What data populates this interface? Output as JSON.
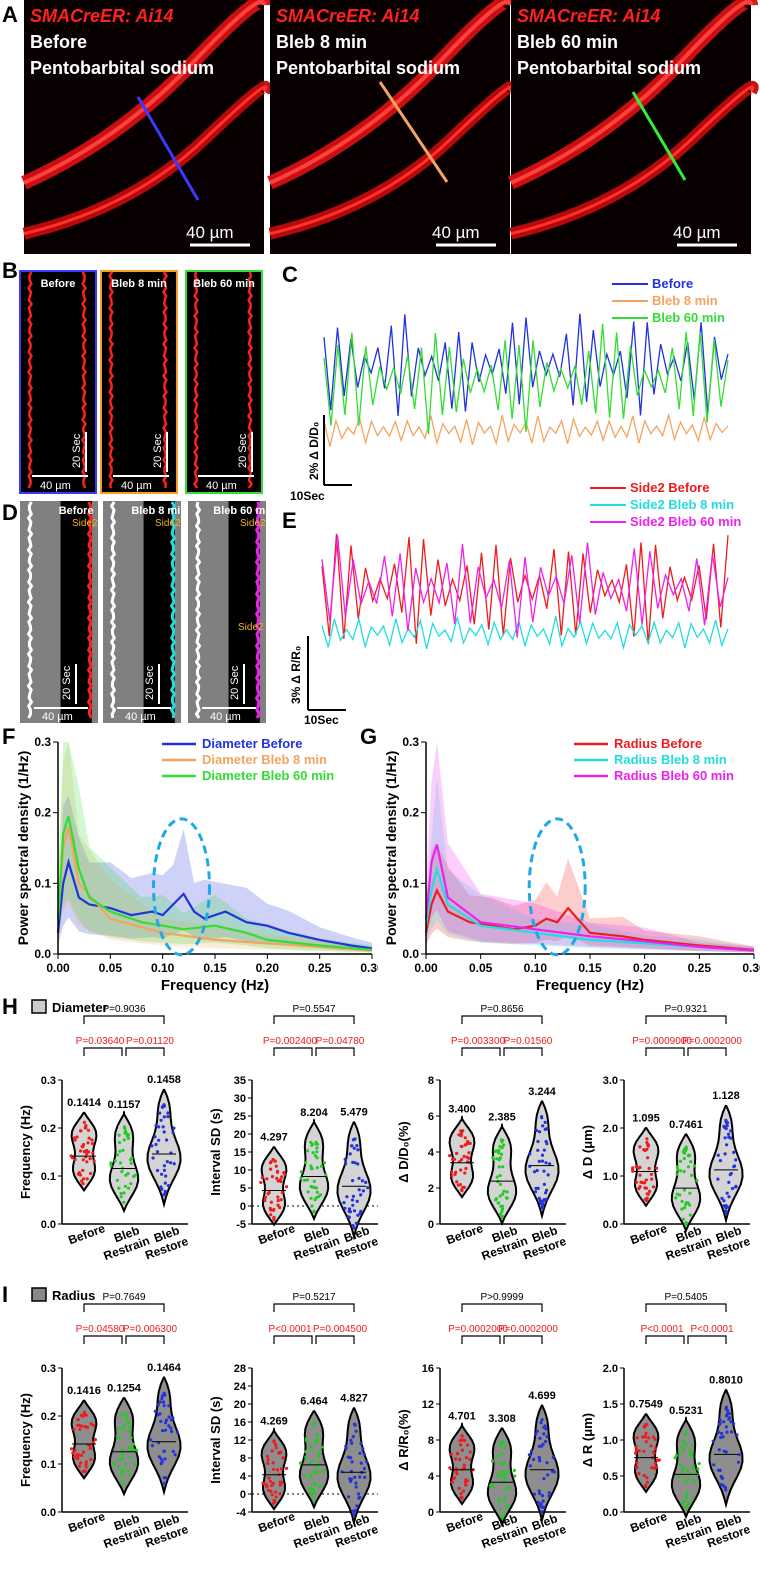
{
  "panel_letters": {
    "A": "A",
    "B": "B",
    "C": "C",
    "D": "D",
    "E": "E",
    "F": "F",
    "G": "G",
    "H": "H",
    "I": "I"
  },
  "panelA": {
    "images": [
      {
        "title": "SMACreER: Ai14",
        "line1": "Before",
        "line2": "Pentobarbital sodium",
        "scale": "40 µm",
        "line_color": "#3a3aff"
      },
      {
        "title": "SMACreER: Ai14",
        "line1": "Bleb 8 min",
        "line2": "Pentobarbital sodium",
        "scale": "40 µm",
        "line_color": "#f4a460"
      },
      {
        "title": "SMACreER: Ai14",
        "line1": "Bleb 60 min",
        "line2": "Pentobarbital sodium",
        "scale": "40 µm",
        "line_color": "#33ee33"
      }
    ]
  },
  "panelB": {
    "items": [
      {
        "label": "Before",
        "color": "#3a3aff",
        "time": "20 Sec",
        "scale": "40 µm"
      },
      {
        "label": "Bleb 8 min",
        "color": "#f4a020",
        "time": "20 Sec",
        "scale": "40 µm"
      },
      {
        "label": "Bleb 60 min",
        "color": "#33dd33",
        "time": "20 Sec",
        "scale": "40 µm"
      }
    ]
  },
  "panelC": {
    "legend": [
      {
        "name": "Before",
        "color": "#2233dd"
      },
      {
        "name": "Bleb 8 min",
        "color": "#f4a460"
      },
      {
        "name": "Bleb 60 min",
        "color": "#33dd33"
      }
    ],
    "ylabel": "2% Δ D/D₀",
    "xlabel": "10Sec"
  },
  "panelD": {
    "items": [
      {
        "label": "Before",
        "side": "Side2",
        "color": "#ff2020",
        "time": "20 Sec",
        "scale": "40 µm"
      },
      {
        "label": "Bleb 8 min",
        "side": "Side2",
        "color": "#22dddd",
        "time": "20 Sec",
        "scale": "40 µm"
      },
      {
        "label": "Bleb 60 min",
        "side": "Side2",
        "side_extra": "Side2",
        "color": "#ee22ee",
        "time": "20 Sec",
        "scale": "40 µm"
      }
    ]
  },
  "panelE": {
    "legend": [
      {
        "name": "Side2 Before",
        "color": "#ee1c1c"
      },
      {
        "name": "Side2 Bleb 8 min",
        "color": "#22dddd"
      },
      {
        "name": "Side2 Bleb 60 min",
        "color": "#ee22ee"
      }
    ],
    "ylabel": "3% Δ R/R₀",
    "xlabel": "10Sec"
  },
  "chart_data": [
    {
      "id": "F",
      "type": "line",
      "title": "",
      "xlabel": "Frequency (Hz)",
      "ylabel": "Power spectral density (1/Hz)",
      "xlim": [
        0,
        0.3
      ],
      "ylim": [
        0,
        0.3
      ],
      "xticks": [
        "0.00",
        "0.05",
        "0.10",
        "0.15",
        "0.20",
        "0.25",
        "0.30"
      ],
      "yticks": [
        "0.0",
        "0.1",
        "0.2",
        "0.3"
      ],
      "legend_position": "top-right",
      "series": [
        {
          "name": "Diameter Before",
          "color": "#2233dd",
          "x": [
            0,
            0.005,
            0.01,
            0.02,
            0.03,
            0.05,
            0.07,
            0.09,
            0.1,
            0.11,
            0.12,
            0.13,
            0.14,
            0.16,
            0.18,
            0.2,
            0.22,
            0.25,
            0.28,
            0.3
          ],
          "y": [
            0.03,
            0.1,
            0.13,
            0.08,
            0.07,
            0.065,
            0.055,
            0.06,
            0.055,
            0.07,
            0.085,
            0.06,
            0.05,
            0.06,
            0.045,
            0.04,
            0.03,
            0.02,
            0.012,
            0.008
          ]
        },
        {
          "name": "Diameter Bleb 8 min",
          "color": "#f4a460",
          "x": [
            0,
            0.005,
            0.01,
            0.02,
            0.05,
            0.1,
            0.15,
            0.2,
            0.25,
            0.3
          ],
          "y": [
            0.05,
            0.15,
            0.18,
            0.1,
            0.05,
            0.03,
            0.02,
            0.015,
            0.01,
            0.005
          ]
        },
        {
          "name": "Diameter Bleb 60 min",
          "color": "#33dd33",
          "x": [
            0,
            0.005,
            0.01,
            0.02,
            0.03,
            0.05,
            0.08,
            0.1,
            0.12,
            0.15,
            0.18,
            0.2,
            0.25,
            0.3
          ],
          "y": [
            0.05,
            0.17,
            0.195,
            0.12,
            0.08,
            0.06,
            0.045,
            0.04,
            0.035,
            0.04,
            0.03,
            0.02,
            0.012,
            0.006
          ]
        }
      ]
    },
    {
      "id": "G",
      "type": "line",
      "title": "",
      "xlabel": "Frequency (Hz)",
      "ylabel": "Power spectral density (1/Hz)",
      "xlim": [
        0,
        0.3
      ],
      "ylim": [
        0,
        0.3
      ],
      "xticks": [
        "0.00",
        "0.05",
        "0.10",
        "0.15",
        "0.20",
        "0.25",
        "0.30"
      ],
      "yticks": [
        "0.0",
        "0.1",
        "0.2",
        "0.3"
      ],
      "legend_position": "top-right",
      "series": [
        {
          "name": "Radius Before",
          "color": "#ee1c1c",
          "x": [
            0,
            0.005,
            0.01,
            0.02,
            0.04,
            0.06,
            0.08,
            0.1,
            0.11,
            0.12,
            0.13,
            0.15,
            0.18,
            0.2,
            0.25,
            0.3
          ],
          "y": [
            0.03,
            0.07,
            0.09,
            0.06,
            0.045,
            0.04,
            0.035,
            0.04,
            0.05,
            0.045,
            0.065,
            0.03,
            0.025,
            0.02,
            0.012,
            0.006
          ]
        },
        {
          "name": "Radius Bleb 8 min",
          "color": "#22dddd",
          "x": [
            0,
            0.005,
            0.01,
            0.02,
            0.05,
            0.1,
            0.15,
            0.2,
            0.25,
            0.3
          ],
          "y": [
            0.04,
            0.09,
            0.12,
            0.07,
            0.04,
            0.03,
            0.02,
            0.015,
            0.01,
            0.005
          ]
        },
        {
          "name": "Radius Bleb 60 min",
          "color": "#ee22ee",
          "x": [
            0,
            0.005,
            0.01,
            0.02,
            0.05,
            0.1,
            0.15,
            0.2,
            0.25,
            0.3
          ],
          "y": [
            0.05,
            0.13,
            0.155,
            0.08,
            0.045,
            0.035,
            0.025,
            0.018,
            0.01,
            0.005
          ]
        }
      ]
    }
  ],
  "panelH": {
    "legend": "Diameter",
    "legend_color": "#cccccc",
    "categories": [
      "Before",
      "Bleb Restrain",
      "Bleb Restore"
    ],
    "plots": [
      {
        "ylabel": "Frequency (Hz)",
        "yticks": [
          "0.0",
          "0.1",
          "0.2",
          "0.3"
        ],
        "ymin": 0,
        "ymax": 0.3,
        "top_p": "P=0.9036",
        "p1": "P=0.03640",
        "p2": "P=0.01120",
        "p_red": [
          true,
          true
        ],
        "means": [
          "0.1414",
          "0.1157",
          "0.1458"
        ],
        "mean_vals": [
          0.1414,
          0.1157,
          0.1458
        ]
      },
      {
        "ylabel": "Interval SD (s)",
        "yticks": [
          "-5",
          "0",
          "5",
          "10",
          "15",
          "20",
          "25",
          "30",
          "35"
        ],
        "ymin": -5,
        "ymax": 35,
        "top_p": "P=0.5547",
        "p1": "P=0.002400",
        "p2": "P=0.04780",
        "p_red": [
          true,
          true
        ],
        "means": [
          "4.297",
          "8.204",
          "5.479"
        ],
        "mean_vals": [
          4.297,
          8.204,
          5.479
        ]
      },
      {
        "ylabel": "Δ D/D₀(%)",
        "yticks": [
          "0",
          "2",
          "4",
          "6",
          "8"
        ],
        "ymin": 0,
        "ymax": 8,
        "top_p": "P=0.8656",
        "p1": "P=0.003300",
        "p2": "P=0.01560",
        "p_red": [
          true,
          true
        ],
        "means": [
          "3.400",
          "2.385",
          "3.244"
        ],
        "mean_vals": [
          3.4,
          2.385,
          3.244
        ]
      },
      {
        "ylabel": "Δ D (μm)",
        "yticks": [
          "0.0",
          "1.0",
          "2.0",
          "3.0"
        ],
        "ymin": 0,
        "ymax": 3,
        "top_p": "P=0.9321",
        "p1": "P=0.0009000",
        "p2": "P=0.0002000",
        "p_red": [
          true,
          true
        ],
        "means": [
          "1.095",
          "0.7461",
          "1.128"
        ],
        "mean_vals": [
          1.095,
          0.7461,
          1.128
        ]
      }
    ]
  },
  "panelI": {
    "legend": "Radius",
    "legend_color": "#888888",
    "categories": [
      "Before",
      "Bleb Restrain",
      "Bleb Restore"
    ],
    "plots": [
      {
        "ylabel": "Frequency (Hz)",
        "yticks": [
          "0.0",
          "0.1",
          "0.2",
          "0.3"
        ],
        "ymin": 0,
        "ymax": 0.3,
        "top_p": "P=0.7649",
        "p1": "P=0.04580",
        "p2": "P=0.006300",
        "p_red": [
          true,
          true
        ],
        "means": [
          "0.1416",
          "0.1254",
          "0.1464"
        ],
        "mean_vals": [
          0.1416,
          0.1254,
          0.1464
        ]
      },
      {
        "ylabel": "Interval SD (s)",
        "yticks": [
          "-4",
          "0",
          "4",
          "8",
          "12",
          "16",
          "20",
          "24",
          "28"
        ],
        "ymin": -4,
        "ymax": 28,
        "top_p": "P=0.5217",
        "p1": "P<0.0001",
        "p2": "P=0.004500",
        "p_red": [
          true,
          true
        ],
        "means": [
          "4.269",
          "6.464",
          "4.827"
        ],
        "mean_vals": [
          4.269,
          6.464,
          4.827
        ]
      },
      {
        "ylabel": "Δ R/R₀(%)",
        "yticks": [
          "0",
          "4",
          "8",
          "12",
          "16"
        ],
        "ymin": 0,
        "ymax": 16,
        "top_p": "P>0.9999",
        "p1": "P=0.0002000",
        "p2": "P=0.0002000",
        "p_red": [
          true,
          true
        ],
        "means": [
          "4.701",
          "3.308",
          "4.699"
        ],
        "mean_vals": [
          4.701,
          3.308,
          4.699
        ]
      },
      {
        "ylabel": "Δ R (μm)",
        "yticks": [
          "0.0",
          "0.5",
          "1.0",
          "1.5",
          "2.0"
        ],
        "ymin": 0,
        "ymax": 2,
        "top_p": "P=0.5405",
        "p1": "P<0.0001",
        "p2": "P<0.0001",
        "p_red": [
          true,
          true
        ],
        "means": [
          "0.7549",
          "0.5231",
          "0.8010"
        ],
        "mean_vals": [
          0.7549,
          0.5231,
          0.801
        ]
      }
    ]
  },
  "group_colors": [
    "#ee1c1c",
    "#22cc22",
    "#2233dd"
  ]
}
